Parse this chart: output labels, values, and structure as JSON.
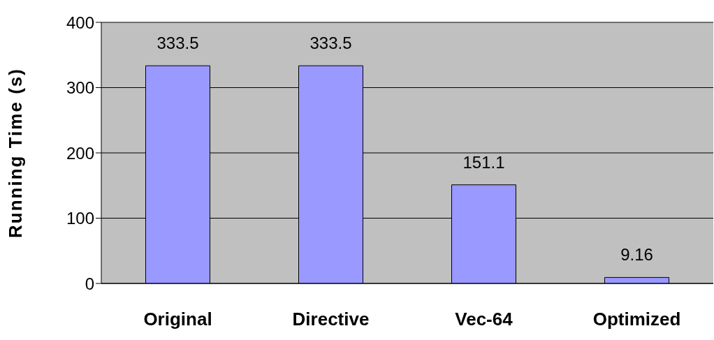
{
  "chart_data": {
    "type": "bar",
    "ylabel": "Running Time (s)",
    "categories": [
      "Original",
      "Directive",
      "Vec-64",
      "Optimized"
    ],
    "values": [
      333.5,
      333.5,
      151.1,
      9.16
    ],
    "color": "#9999ff",
    "ylim": [
      0,
      400
    ],
    "yticks": [
      0,
      100,
      200,
      300,
      400
    ],
    "grid": "y",
    "data_labels": true
  }
}
